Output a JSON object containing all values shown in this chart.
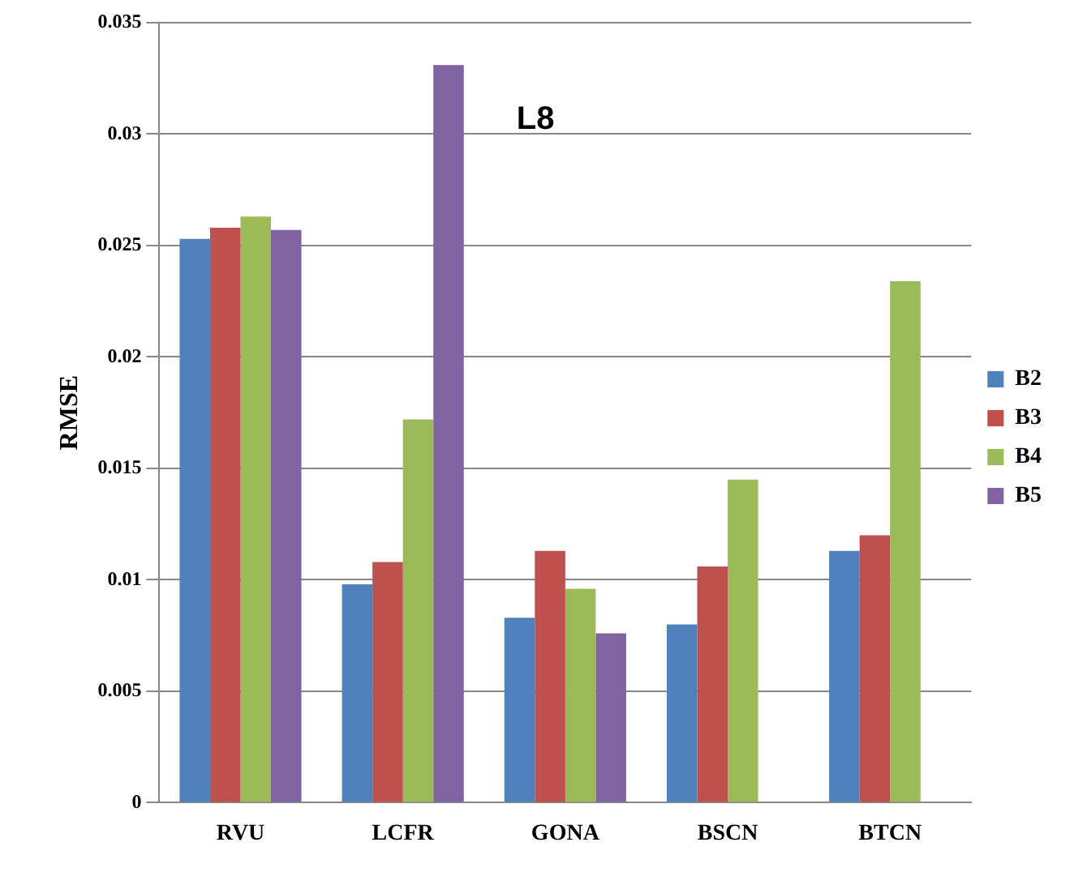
{
  "chart_data": {
    "type": "bar",
    "ylabel": "RMSE",
    "annotations": [
      "L8"
    ],
    "categories": [
      "RVU",
      "LCFR",
      "GONA",
      "BSCN",
      "BTCN"
    ],
    "series": [
      {
        "name": "B2",
        "color": "#4f81bd",
        "values": [
          0.0253,
          0.0098,
          0.0083,
          0.008,
          0.0113
        ]
      },
      {
        "name": "B3",
        "color": "#c0504d",
        "values": [
          0.0258,
          0.0108,
          0.0113,
          0.0106,
          0.012
        ]
      },
      {
        "name": "B4",
        "color": "#9bbb59",
        "values": [
          0.0263,
          0.0172,
          0.0096,
          0.0145,
          0.0234
        ]
      },
      {
        "name": "B5",
        "color": "#8064a2",
        "values": [
          0.0257,
          0.0331,
          0.0076,
          null,
          null
        ]
      }
    ],
    "ylim": [
      0,
      0.035
    ],
    "yticks": [
      0,
      0.005,
      0.01,
      0.015,
      0.02,
      0.025,
      0.03,
      0.035
    ],
    "grid": "y",
    "legend": "right"
  }
}
